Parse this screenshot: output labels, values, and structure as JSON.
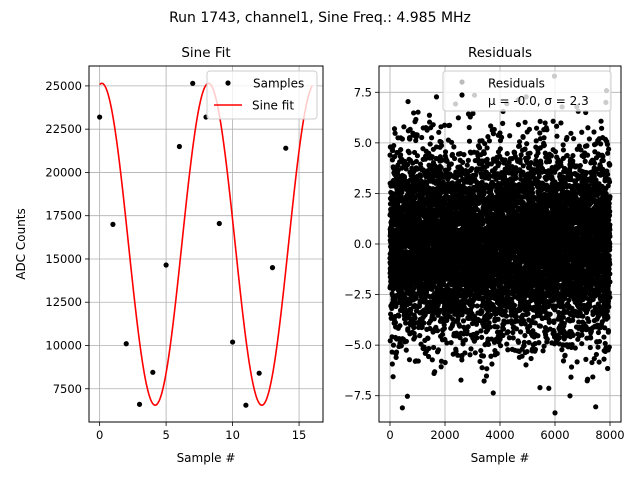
{
  "figure": {
    "suptitle": "Run 1743, channel1, Sine Freq.: 4.985 MHz"
  },
  "chart_data": [
    {
      "type": "scatter",
      "title": "Sine Fit",
      "xlabel": "Sample #",
      "ylabel": "ADC Counts",
      "xlim": [
        -0.8,
        16.8
      ],
      "ylim": [
        5580,
        26150
      ],
      "xticks": [
        0,
        5,
        10,
        15
      ],
      "xtick_labels": [
        "0",
        "5",
        "10",
        "15"
      ],
      "yticks": [
        7500,
        10000,
        12500,
        15000,
        17500,
        20000,
        22500,
        25000
      ],
      "ytick_labels": [
        "7500",
        "10000",
        "12500",
        "15000",
        "17500",
        "20000",
        "22500",
        "25000"
      ],
      "grid": true,
      "legend": {
        "position": "top-right",
        "entries": [
          "Samples",
          "Sine fit"
        ]
      },
      "series": [
        {
          "name": "Samples",
          "kind": "points",
          "color": "#000000",
          "x": [
            0,
            1,
            2,
            3,
            4,
            5,
            6,
            7,
            8,
            9,
            10,
            11,
            12,
            13,
            14
          ],
          "y": [
            23200,
            17000,
            10100,
            6600,
            8450,
            14650,
            21500,
            25150,
            23200,
            17050,
            10200,
            6550,
            8400,
            14500,
            21400
          ]
        },
        {
          "name": "Sine fit",
          "kind": "line",
          "color": "#ff0000",
          "function": {
            "form": "A*sin(2*pi*f*x + phi) + C",
            "A": 9300,
            "C": 15850,
            "f": 0.12461,
            "phi": 1.4426,
            "x_range": [
              0,
              16
            ]
          }
        }
      ]
    },
    {
      "type": "scatter",
      "title": "Residuals",
      "xlabel": "Sample #",
      "ylabel": "",
      "xlim": [
        -400,
        8400
      ],
      "ylim": [
        -8.8,
        8.8
      ],
      "xticks": [
        0,
        2000,
        4000,
        6000,
        8000
      ],
      "xtick_labels": [
        "0",
        "2000",
        "4000",
        "6000",
        "8000"
      ],
      "yticks": [
        -7.5,
        -5.0,
        -2.5,
        0.0,
        2.5,
        5.0,
        7.5
      ],
      "ytick_labels": [
        "−7.5",
        "−5.0",
        "−2.5",
        "0.0",
        "2.5",
        "5.0",
        "7.5"
      ],
      "grid": true,
      "legend": {
        "position": "top-right",
        "entries": [
          "Residuals",
          "μ = -0.0, σ = 2.3"
        ]
      },
      "series": [
        {
          "name": "Residuals",
          "kind": "points",
          "color": "#000000",
          "distribution": {
            "n": 8000,
            "x_range": [
              0,
              7999
            ],
            "mean": 0.0,
            "std": 2.3
          },
          "notable_points": [
            {
              "x": 450,
              "y": -8.1
            },
            {
              "x": 5980,
              "y": 8.3
            },
            {
              "x": 6000,
              "y": -8.35
            },
            {
              "x": 7480,
              "y": -8.05
            },
            {
              "x": 7850,
              "y": 7.0
            }
          ]
        }
      ]
    }
  ]
}
